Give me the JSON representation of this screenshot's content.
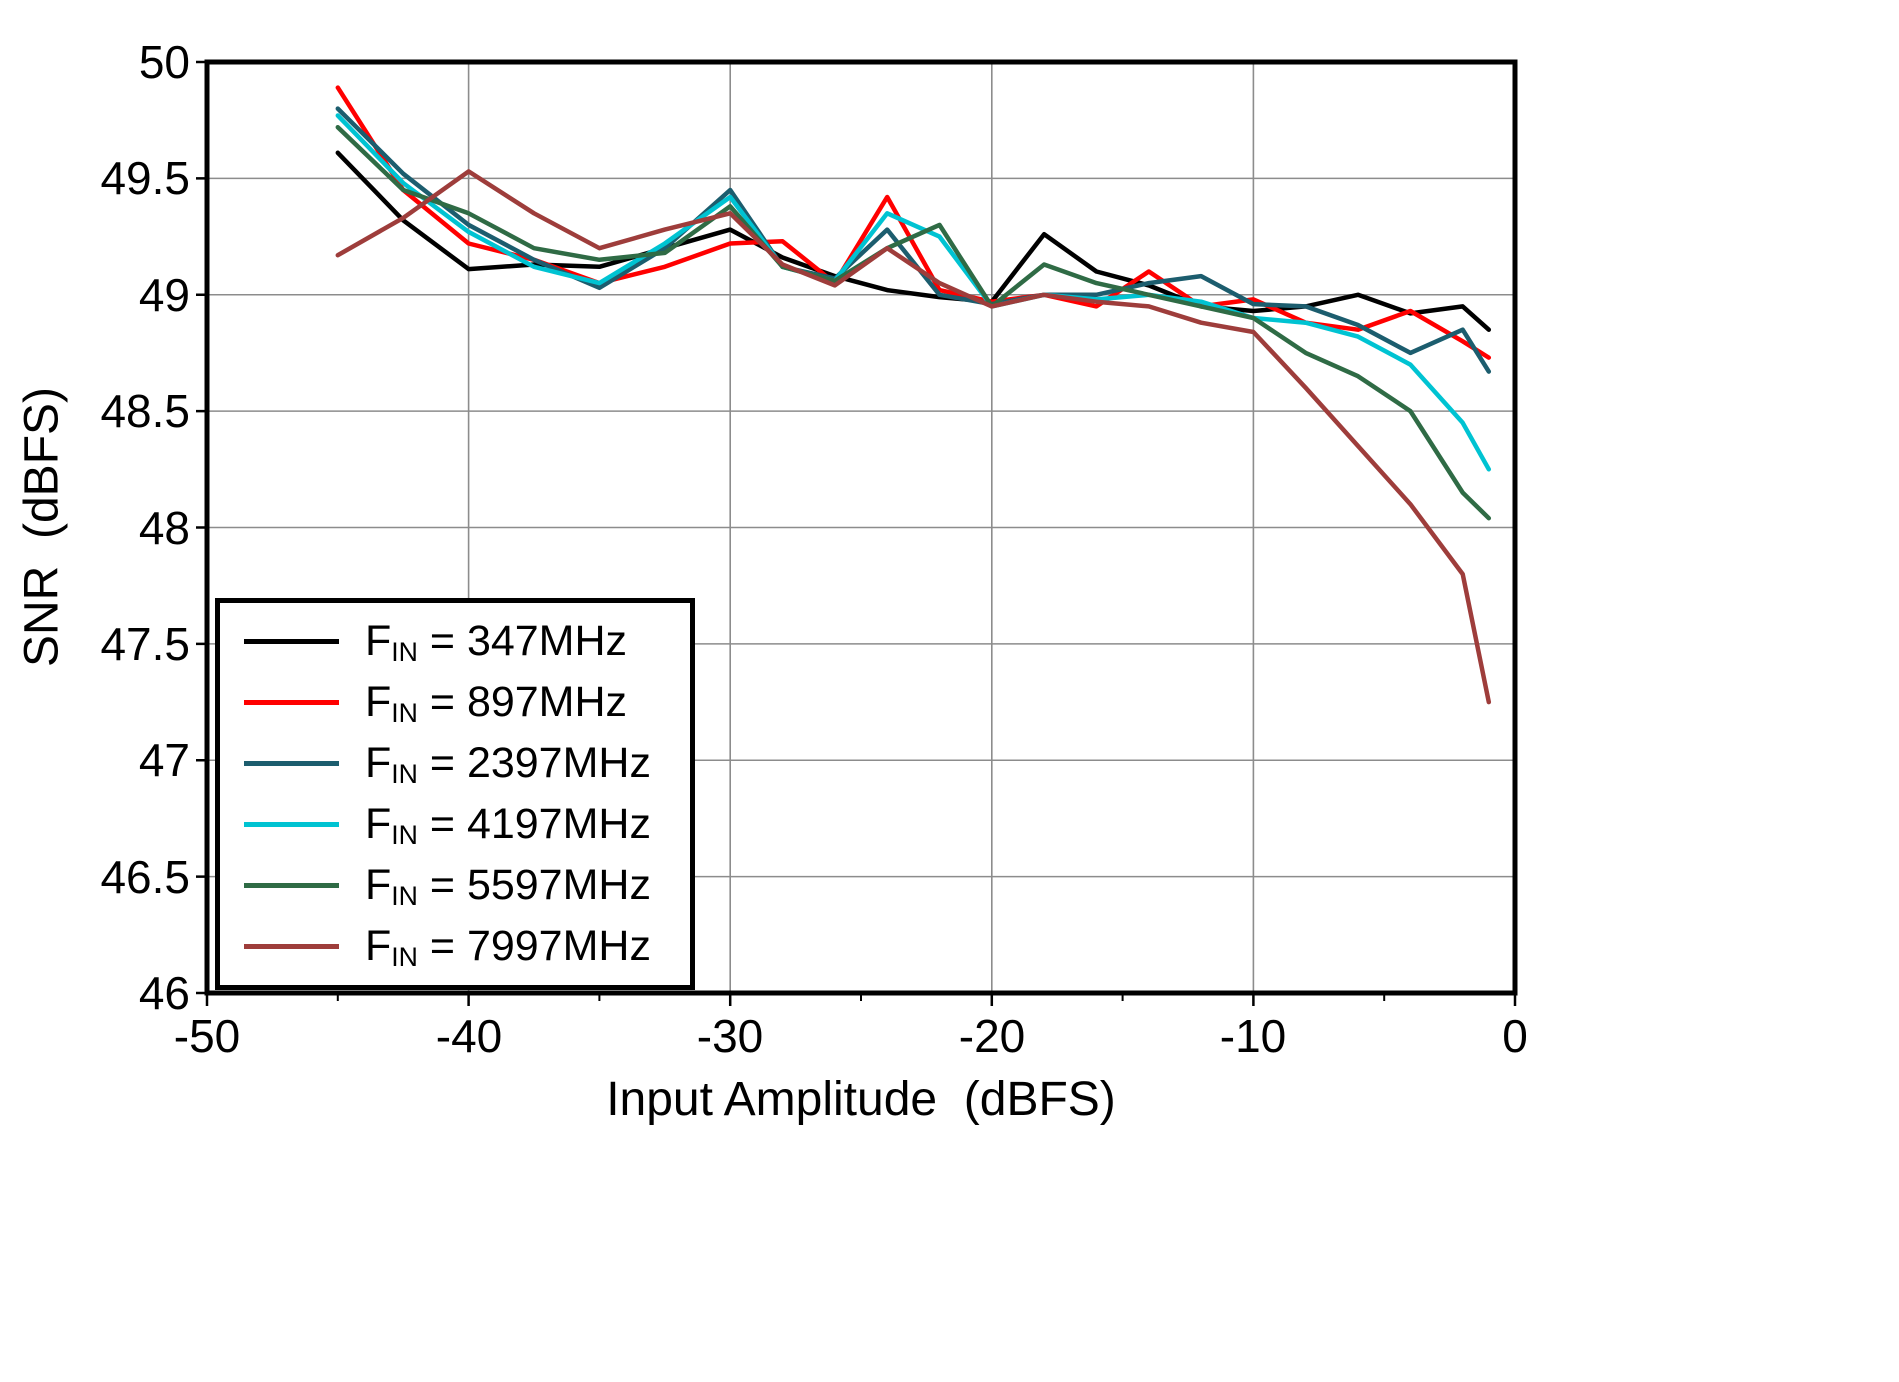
{
  "chart_data": {
    "type": "line",
    "title": "",
    "xlabel": "Input Amplitude  (dBFS)",
    "ylabel": "SNR  (dBFS)",
    "xlim": [
      -50,
      0
    ],
    "ylim": [
      46,
      50
    ],
    "grid": true,
    "legend_position": "lower-left",
    "xticks": [
      -50,
      -40,
      -30,
      -20,
      -10,
      0
    ],
    "xtick_labels": [
      "-50",
      "-40",
      "-30",
      "-20",
      "-10",
      "0"
    ],
    "yticks": [
      50,
      49.5,
      49,
      48.5,
      48,
      47.5,
      47,
      46.5,
      46
    ],
    "ytick_labels": [
      "50",
      "49.5",
      "49",
      "48.5",
      "48",
      "47.5",
      "47",
      "46.5",
      "46"
    ],
    "x": [
      -45,
      -42.5,
      -40,
      -37.5,
      -35,
      -32.5,
      -30,
      -28,
      -26,
      -24,
      -22,
      -20,
      -18,
      -16,
      -14,
      -12,
      -10,
      -8,
      -6,
      -4,
      -2,
      -1
    ],
    "series": [
      {
        "name": "FIN = 347MHz",
        "legend_prefix": "F",
        "legend_sub": "IN",
        "legend_suffix": " = 347MHz",
        "color": "#000000",
        "values": [
          49.61,
          49.32,
          49.11,
          49.13,
          49.12,
          49.2,
          49.28,
          49.16,
          49.08,
          49.02,
          48.99,
          48.97,
          49.26,
          49.1,
          49.04,
          48.95,
          48.93,
          48.95,
          49.0,
          48.92,
          48.95,
          48.85
        ]
      },
      {
        "name": "FIN = 897MHz",
        "legend_prefix": "F",
        "legend_sub": "IN",
        "legend_suffix": " = 897MHz",
        "color": "#ff0000",
        "values": [
          49.89,
          49.45,
          49.22,
          49.15,
          49.05,
          49.12,
          49.22,
          49.23,
          49.05,
          49.42,
          49.02,
          48.97,
          49.0,
          48.95,
          49.1,
          48.95,
          48.98,
          48.88,
          48.85,
          48.93,
          48.8,
          48.73
        ]
      },
      {
        "name": "FIN = 2397MHz",
        "legend_prefix": "F",
        "legend_sub": "IN",
        "legend_suffix": " = 2397MHz",
        "color": "#1c5d6e",
        "values": [
          49.8,
          49.52,
          49.3,
          49.15,
          49.03,
          49.2,
          49.45,
          49.12,
          49.07,
          49.28,
          49.0,
          48.96,
          49.0,
          49.0,
          49.05,
          49.08,
          48.96,
          48.95,
          48.87,
          48.75,
          48.85,
          48.67
        ]
      },
      {
        "name": "FIN = 4197MHz",
        "legend_prefix": "F",
        "legend_sub": "IN",
        "legend_suffix": " = 4197MHz",
        "color": "#00c3d2",
        "values": [
          49.77,
          49.48,
          49.27,
          49.12,
          49.05,
          49.22,
          49.42,
          49.12,
          49.06,
          49.35,
          49.25,
          48.95,
          49.0,
          48.98,
          49.0,
          48.97,
          48.9,
          48.88,
          48.82,
          48.7,
          48.45,
          48.25
        ]
      },
      {
        "name": "FIN = 5597MHz",
        "legend_prefix": "F",
        "legend_sub": "IN",
        "legend_suffix": " = 5597MHz",
        "color": "#2f6b45",
        "values": [
          49.72,
          49.45,
          49.35,
          49.2,
          49.15,
          49.18,
          49.38,
          49.12,
          49.06,
          49.2,
          49.3,
          48.95,
          49.13,
          49.05,
          49.0,
          48.95,
          48.9,
          48.75,
          48.65,
          48.5,
          48.15,
          48.04
        ]
      },
      {
        "name": "FIN = 7997MHz",
        "legend_prefix": "F",
        "legend_sub": "IN",
        "legend_suffix": " = 7997MHz",
        "color": "#9e3d3b",
        "values": [
          49.17,
          49.33,
          49.53,
          49.35,
          49.2,
          49.28,
          49.35,
          49.13,
          49.04,
          49.2,
          49.05,
          48.95,
          49.0,
          48.97,
          48.95,
          48.88,
          48.84,
          48.6,
          48.35,
          48.1,
          47.8,
          47.25
        ]
      }
    ]
  }
}
